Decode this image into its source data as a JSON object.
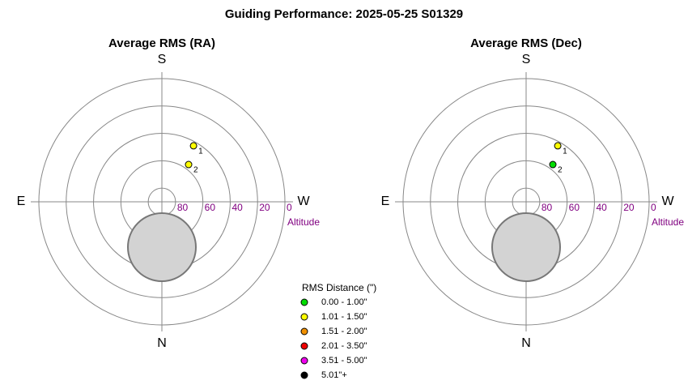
{
  "title": "Guiding Performance: 2025-05-25 S01329",
  "chart_data": [
    {
      "type": "polar",
      "title": "Average RMS (RA)",
      "directions": {
        "top": "S",
        "left": "E",
        "right": "W",
        "bottom": "N"
      },
      "r_label": "Altitude",
      "rlim": [
        90,
        0
      ],
      "rticks": [
        80,
        60,
        40,
        20,
        0
      ],
      "points": [
        {
          "label": "1",
          "azimuth": 209.5,
          "altitude": 43,
          "color": "#ffff00"
        },
        {
          "label": "2",
          "azimuth": 215.7,
          "altitude": 56.5,
          "color": "#ffff00"
        }
      ]
    },
    {
      "type": "polar",
      "title": "Average RMS (Dec)",
      "directions": {
        "top": "S",
        "left": "E",
        "right": "W",
        "bottom": "N"
      },
      "r_label": "Altitude",
      "rlim": [
        90,
        0
      ],
      "rticks": [
        80,
        60,
        40,
        20,
        0
      ],
      "points": [
        {
          "label": "1",
          "azimuth": 209.5,
          "altitude": 43,
          "color": "#ffff00"
        },
        {
          "label": "2",
          "azimuth": 215.7,
          "altitude": 56.5,
          "color": "#00dd00"
        }
      ]
    }
  ],
  "legend": {
    "title": "RMS Distance (\")",
    "items": [
      {
        "label": "0.00 - 1.00\"",
        "color": "#00dd00"
      },
      {
        "label": "1.01 - 1.50\"",
        "color": "#ffff00"
      },
      {
        "label": "1.51 - 2.00\"",
        "color": "#f09000"
      },
      {
        "label": "2.01 - 3.50\"",
        "color": "#ee0000"
      },
      {
        "label": "3.51 - 5.00\"",
        "color": "#ee00ee"
      },
      {
        "label": "5.01\"+",
        "color": "#000000"
      }
    ]
  }
}
